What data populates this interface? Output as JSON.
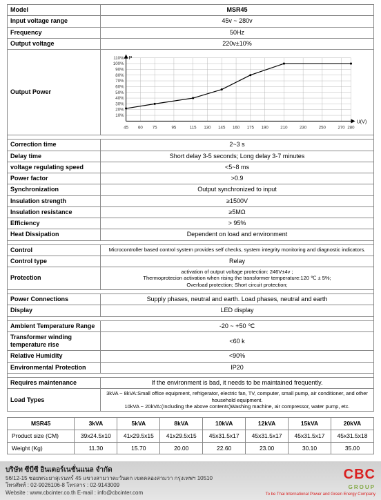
{
  "spec": {
    "model_label": "Model",
    "model_value": "MSR45",
    "rows_top": [
      {
        "label": "Input voltage range",
        "value": "45v ~ 280v"
      },
      {
        "label": "Frequency",
        "value": "50Hz"
      },
      {
        "label": "Output voltage",
        "value": "220v±10%"
      }
    ],
    "output_power_label": "Output Power",
    "rows_mid": [
      {
        "label": "Correction time",
        "value": "2~3 s"
      },
      {
        "label": "Delay time",
        "value": "Short delay 3-5 seconds; Long delay 3-7 minutes"
      },
      {
        "label": "voltage regulating speed",
        "value": "<5~8 ms"
      },
      {
        "label": "Power factor",
        "value": ">0.9"
      },
      {
        "label": "Synchronization",
        "value": "Output synchronized to input"
      },
      {
        "label": "Insulation strength",
        "value": "≥1500V"
      },
      {
        "label": "Insulation resistance",
        "value": "≥5MΩ"
      },
      {
        "label": "Efficiency",
        "value": "> 95%"
      },
      {
        "label": "Heat Dissipation",
        "value": "Dependent on load and environment"
      }
    ],
    "rows_control": [
      {
        "label": "Control",
        "value": "Microcontroller based control system provides self checks, system integrity monitoring and diagnostic indicators."
      },
      {
        "label": "Control type",
        "value": "Relay"
      },
      {
        "label": "Protection",
        "value": "activation of output voltage protection: 246V±4v ;\nThermoprotecion activation when rising the transformer temperature:120 ℃ ± 5%;\nOverload protection; Short circuit protection;"
      }
    ],
    "rows_conn": [
      {
        "label": "Power Connections",
        "value": "Supply phases, neutral and earth. Load phases, neutral and earth"
      },
      {
        "label": "Display",
        "value": "LED display"
      }
    ],
    "rows_env": [
      {
        "label": "Ambient Temperature Range",
        "value": "-20 ~ +50 ℃"
      },
      {
        "label": "Transformer winding temperature rise",
        "value": "<60 k"
      },
      {
        "label": "Relative Humidity",
        "value": "<90%"
      },
      {
        "label": "Environmental Protection",
        "value": "IP20"
      }
    ],
    "rows_maint": [
      {
        "label": "Requires maintenance",
        "value": "If the environment is bad, it needs to be maintained frequently."
      },
      {
        "label": "Load Types",
        "value": "3kVA ~ 8kVA:Small office equipment, refrigerator, electric fan, TV, computer, small pump, air conditioner, and other household equipment.\n10kVA ~ 20kVA:(Including the above contents)Washing machine, air compressor, water pump, etc."
      }
    ]
  },
  "chart": {
    "type": "line",
    "x_label": "U(V)",
    "y_label": "P",
    "x_ticks": [
      45,
      60,
      75,
      95,
      115,
      130,
      145,
      160,
      175,
      190,
      210,
      230,
      250,
      270,
      280
    ],
    "y_ticks_pct": [
      10,
      20,
      30,
      40,
      50,
      60,
      70,
      80,
      90,
      100,
      110
    ],
    "points": [
      {
        "x": 45,
        "y": 22
      },
      {
        "x": 75,
        "y": 30
      },
      {
        "x": 115,
        "y": 40
      },
      {
        "x": 145,
        "y": 55
      },
      {
        "x": 175,
        "y": 80
      },
      {
        "x": 210,
        "y": 100
      },
      {
        "x": 280,
        "y": 100
      }
    ],
    "line_color": "#000000",
    "grid_color": "#aaaaaa",
    "background_color": "#ffffff",
    "axis_fontsize": 6
  },
  "size_table": {
    "model_header": "MSR45",
    "columns": [
      "3kVA",
      "5kVA",
      "8kVA",
      "10kVA",
      "12kVA",
      "15kVA",
      "20kVA"
    ],
    "rows": [
      {
        "label": "Product size (CM)",
        "cells": [
          "39x24.5x10",
          "41x29.5x15",
          "41x29.5x15",
          "45x31.5x17",
          "45x31.5x17",
          "45x31.5x17",
          "45x31.5x18"
        ]
      },
      {
        "label": "Weight (Kg)",
        "cells": [
          "11.30",
          "15.70",
          "20.00",
          "22.60",
          "23.00",
          "30.10",
          "35.00"
        ]
      }
    ]
  },
  "footer": {
    "company": "บริษัท ซีบีซี อินเตอร์เนชั่นแนล จำกัด",
    "address": "56/12-15 ซอยพระยาสุเรนทร์ 45 แขวงสามวาตะวันตก เขตคลองสามวา กรุงเทพฯ 10510",
    "phone": "โทรศัพท์ : 02-9026106-8   โทรสาร : 02-9143009",
    "web": "Website : www.cbcinter.co.th   E-mail : info@cbcinter.com",
    "logo_text": "CBC",
    "group": "GROUP",
    "tagline": "To be Thai International Power and Green Energy Company"
  }
}
